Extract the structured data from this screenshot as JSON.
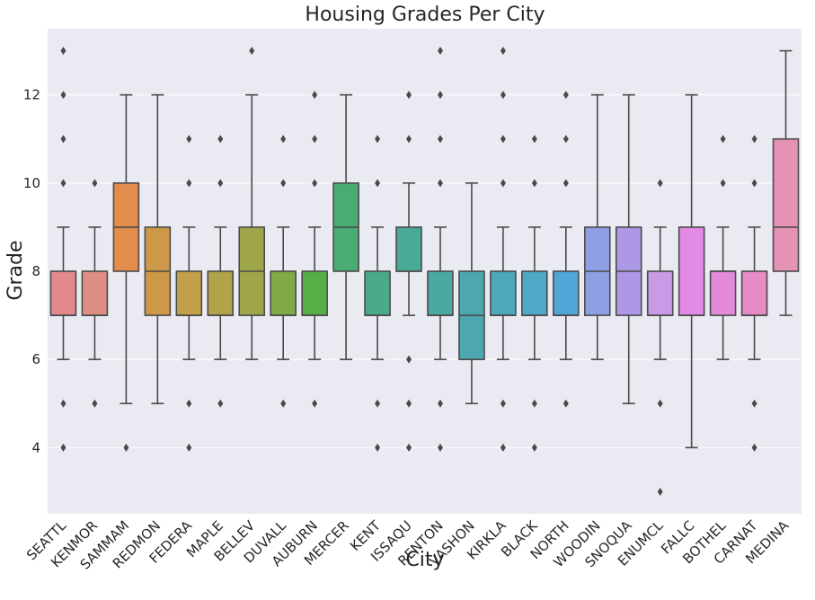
{
  "chart_data": {
    "type": "box",
    "title": "Housing Grades Per City",
    "xlabel": "City",
    "ylabel": "Grade",
    "ylim": [
      2.5,
      13.5
    ],
    "yticks": [
      4,
      6,
      8,
      10,
      12
    ],
    "grid": true,
    "colors": {
      "background": "#eaeaf2",
      "grid": "#ffffff",
      "line": "#4a4a4a"
    },
    "boxes": [
      {
        "city": "SEATTL",
        "color": "#e1898d",
        "q1": 7,
        "median": 7,
        "q3": 8,
        "whislo": 6,
        "whishi": 9,
        "fliers": [
          4,
          5,
          10,
          11,
          12,
          13
        ]
      },
      {
        "city": "KENMOR",
        "color": "#df8e84",
        "q1": 7,
        "median": 7,
        "q3": 8,
        "whislo": 6,
        "whishi": 9,
        "fliers": [
          5,
          10
        ]
      },
      {
        "city": "SAMMAM",
        "color": "#e28d4c",
        "q1": 8,
        "median": 9,
        "q3": 10,
        "whislo": 5,
        "whishi": 12,
        "fliers": [
          4
        ]
      },
      {
        "city": "REDMON",
        "color": "#cd9949",
        "q1": 7,
        "median": 8,
        "q3": 9,
        "whislo": 5,
        "whishi": 12,
        "fliers": []
      },
      {
        "city": "FEDERA",
        "color": "#c39f4a",
        "q1": 7,
        "median": 7,
        "q3": 8,
        "whislo": 6,
        "whishi": 9,
        "fliers": [
          4,
          5,
          10,
          11
        ]
      },
      {
        "city": "MAPLE",
        "color": "#b1a34a",
        "q1": 7,
        "median": 7,
        "q3": 8,
        "whislo": 6,
        "whishi": 9,
        "fliers": [
          5,
          10,
          11
        ]
      },
      {
        "city": "BELLEV",
        "color": "#9fa64a",
        "q1": 7,
        "median": 8,
        "q3": 9,
        "whislo": 6,
        "whishi": 12,
        "fliers": [
          13
        ]
      },
      {
        "city": "DUVALL",
        "color": "#7faa46",
        "q1": 7,
        "median": 7,
        "q3": 8,
        "whislo": 6,
        "whishi": 9,
        "fliers": [
          5,
          10,
          11
        ]
      },
      {
        "city": "AUBURN",
        "color": "#56ae47",
        "q1": 7,
        "median": 7,
        "q3": 8,
        "whislo": 6,
        "whishi": 9,
        "fliers": [
          5,
          10,
          11,
          12
        ]
      },
      {
        "city": "MERCER",
        "color": "#49ad73",
        "q1": 8,
        "median": 9,
        "q3": 10,
        "whislo": 6,
        "whishi": 12,
        "fliers": []
      },
      {
        "city": "KENT",
        "color": "#4aab8a",
        "q1": 7,
        "median": 7,
        "q3": 8,
        "whislo": 6,
        "whishi": 9,
        "fliers": [
          4,
          5,
          10,
          11
        ]
      },
      {
        "city": "ISSAQU",
        "color": "#4aaa98",
        "q1": 8,
        "median": 8,
        "q3": 9,
        "whislo": 7,
        "whishi": 10,
        "fliers": [
          4,
          5,
          6,
          11,
          12
        ]
      },
      {
        "city": "RENTON",
        "color": "#4ba9a4",
        "q1": 7,
        "median": 7,
        "q3": 8,
        "whislo": 6,
        "whishi": 9,
        "fliers": [
          4,
          5,
          10,
          11,
          12,
          13
        ]
      },
      {
        "city": "VASHON",
        "color": "#4ca8ae",
        "q1": 6,
        "median": 7,
        "q3": 8,
        "whislo": 5,
        "whishi": 10,
        "fliers": []
      },
      {
        "city": "KIRKLA",
        "color": "#4da8b8",
        "q1": 7,
        "median": 7,
        "q3": 8,
        "whislo": 6,
        "whishi": 9,
        "fliers": [
          4,
          5,
          10,
          11,
          12,
          13
        ]
      },
      {
        "city": "BLACK",
        "color": "#4fa8c6",
        "q1": 7,
        "median": 7,
        "q3": 8,
        "whislo": 6,
        "whishi": 9,
        "fliers": [
          4,
          5,
          10,
          11
        ]
      },
      {
        "city": "NORTH",
        "color": "#4fa6d9",
        "q1": 7,
        "median": 7,
        "q3": 8,
        "whislo": 6,
        "whishi": 9,
        "fliers": [
          5,
          10,
          11,
          12
        ]
      },
      {
        "city": "WOODIN",
        "color": "#8e9fe3",
        "q1": 7,
        "median": 8,
        "q3": 9,
        "whislo": 6,
        "whishi": 12,
        "fliers": []
      },
      {
        "city": "SNOQUA",
        "color": "#ad98e6",
        "q1": 7,
        "median": 8,
        "q3": 9,
        "whislo": 5,
        "whishi": 12,
        "fliers": []
      },
      {
        "city": "ENUMCL",
        "color": "#c99ae6",
        "q1": 7,
        "median": 7,
        "q3": 8,
        "whislo": 6,
        "whishi": 9,
        "fliers": [
          3,
          5,
          10
        ]
      },
      {
        "city": "FALLC",
        "color": "#e28ae6",
        "q1": 7,
        "median": 7,
        "q3": 9,
        "whislo": 4,
        "whishi": 12,
        "fliers": []
      },
      {
        "city": "BOTHEL",
        "color": "#e38bd8",
        "q1": 7,
        "median": 8,
        "q3": 8,
        "whislo": 6,
        "whishi": 9,
        "fliers": [
          10,
          11
        ]
      },
      {
        "city": "CARNAT",
        "color": "#e68bc6",
        "q1": 7,
        "median": 7,
        "q3": 8,
        "whislo": 6,
        "whishi": 9,
        "fliers": [
          4,
          5,
          10,
          11
        ]
      },
      {
        "city": "MEDINA",
        "color": "#e592b7",
        "q1": 8,
        "median": 9,
        "q3": 11,
        "whislo": 7,
        "whishi": 13,
        "fliers": []
      }
    ]
  }
}
